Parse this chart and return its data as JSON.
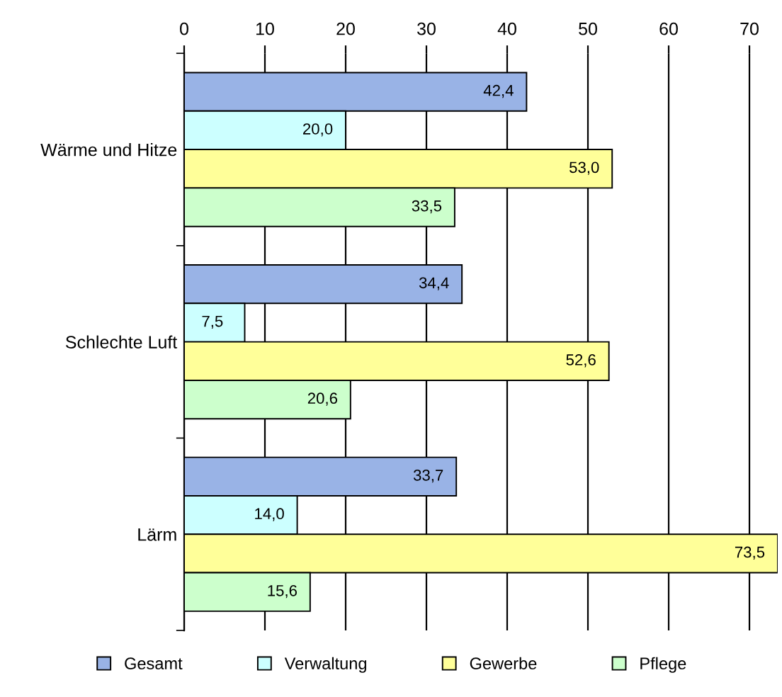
{
  "chart_data": {
    "type": "bar",
    "orientation": "horizontal",
    "categories": [
      "Wärme und Hitze",
      "Schlechte Luft",
      "Lärm"
    ],
    "series": [
      {
        "name": "Gesamt",
        "color": "#99b3e6",
        "values": [
          42.4,
          34.4,
          33.7
        ],
        "value_labels": [
          "42,4",
          "34,4",
          "33,7"
        ]
      },
      {
        "name": "Verwaltung",
        "color": "#ccffff",
        "values": [
          20.0,
          7.5,
          14.0
        ],
        "value_labels": [
          "20,0",
          "7,5",
          "14,0"
        ]
      },
      {
        "name": "Gewerbe",
        "color": "#ffff99",
        "values": [
          53.0,
          52.6,
          73.5
        ],
        "value_labels": [
          "53,0",
          "52,6",
          "73,5"
        ]
      },
      {
        "name": "Pflege",
        "color": "#ccffcc",
        "values": [
          33.5,
          20.6,
          15.6
        ],
        "value_labels": [
          "33,5",
          "20,6",
          "15,6"
        ]
      }
    ],
    "xlim": [
      0,
      73.5
    ],
    "xticks": [
      0,
      10,
      20,
      30,
      40,
      50,
      60,
      70
    ],
    "grid": "x",
    "legend": "bottom"
  }
}
